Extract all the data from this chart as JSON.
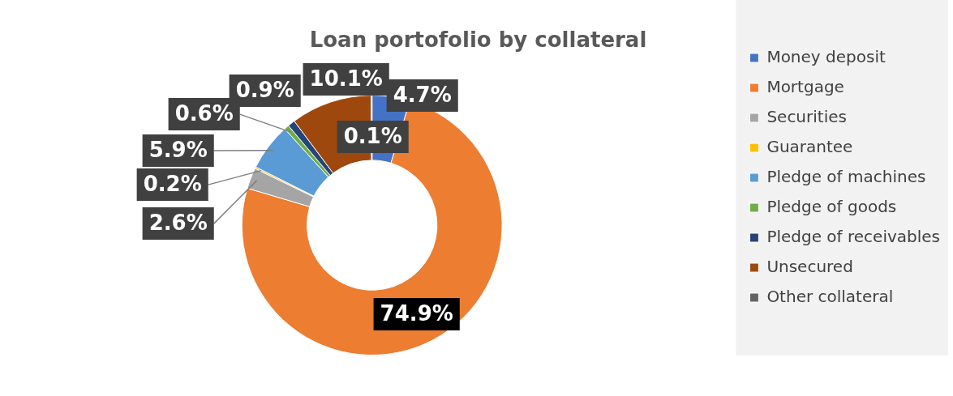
{
  "chart_data": {
    "type": "donut",
    "title": "Loan portofolio by collateral",
    "categories": [
      "Money deposit",
      "Mortgage",
      "Securities",
      "Guarantee",
      "Pledge of machines",
      "Pledge of goods",
      "Pledge of receivables",
      "Unsecured",
      "Other collateral"
    ],
    "values": [
      4.7,
      74.9,
      2.6,
      0.2,
      5.9,
      0.6,
      0.9,
      10.1,
      0.1
    ],
    "colors": [
      "#4472c4",
      "#ed7d31",
      "#a5a5a5",
      "#ffc000",
      "#5b9bd5",
      "#70ad47",
      "#264478",
      "#9e480e",
      "#636363"
    ],
    "value_labels": [
      "4.7%",
      "74.9%",
      "2.6%",
      "0.2%",
      "5.9%",
      "0.6%",
      "0.9%",
      "10.1%",
      "0.1%"
    ],
    "legend": "right"
  }
}
